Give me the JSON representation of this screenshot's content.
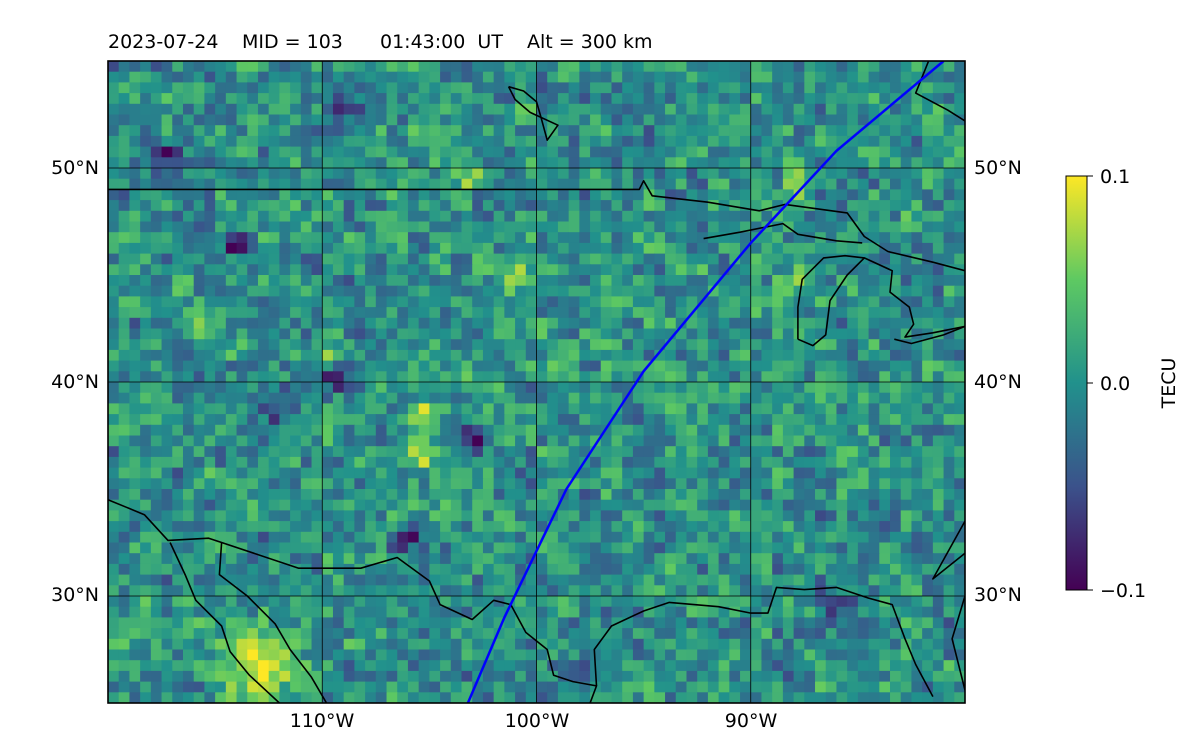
{
  "title": {
    "date": "2023-07-24",
    "mid": "MID = 103",
    "time": "01:43:00  UT",
    "alt": "Alt = 300 km"
  },
  "map": {
    "lon_range": [
      -120,
      -80
    ],
    "lat_range": [
      25,
      55
    ],
    "xticks": [
      {
        "lon": -110,
        "label": "110°W"
      },
      {
        "lon": -100,
        "label": "100°W"
      },
      {
        "lon": -90,
        "label": "90°W"
      }
    ],
    "yticks": [
      {
        "lat": 30,
        "label": "30°N"
      },
      {
        "lat": 40,
        "label": "40°N"
      },
      {
        "lat": 50,
        "label": "50°N"
      }
    ],
    "grid": true,
    "grid_color": "#000000",
    "coastline_color": "#000000",
    "track_color": "#0000ff"
  },
  "colorbar": {
    "label": "TECU",
    "min": -0.1,
    "max": 0.1,
    "ticks": [
      {
        "value": 0.1,
        "label": "0.1"
      },
      {
        "value": 0.0,
        "label": "0.0"
      },
      {
        "value": -0.1,
        "label": "−0.1"
      }
    ],
    "colormap": [
      "#440154",
      "#3b528b",
      "#21918c",
      "#5ec962",
      "#fde725"
    ]
  },
  "chart_data": {
    "type": "heatmap",
    "variable": "TECU",
    "value_range": [
      -0.1,
      0.1
    ],
    "background_value": 0.0,
    "anomalies": [
      {
        "lon": -113.0,
        "lat": 26.8,
        "value": 0.12
      },
      {
        "lon": -103.2,
        "lat": 49.5,
        "value": 0.07
      },
      {
        "lon": -88.0,
        "lat": 49.4,
        "value": 0.06
      },
      {
        "lon": -115.7,
        "lat": 43.0,
        "value": 0.08
      },
      {
        "lon": -109.8,
        "lat": 41.2,
        "value": 0.08
      },
      {
        "lon": -105.3,
        "lat": 38.4,
        "value": 0.08
      },
      {
        "lon": -105.5,
        "lat": 36.6,
        "value": 0.08
      },
      {
        "lon": -104.0,
        "lat": 34.0,
        "value": 0.07
      },
      {
        "lon": -101.0,
        "lat": 45.2,
        "value": 0.07
      },
      {
        "lon": -117.3,
        "lat": 50.8,
        "value": -0.07
      },
      {
        "lon": -87.0,
        "lat": 52.5,
        "value": -0.06
      },
      {
        "lon": -109.0,
        "lat": 53.0,
        "value": -0.05
      },
      {
        "lon": -114.0,
        "lat": 46.5,
        "value": -0.08
      },
      {
        "lon": -109.4,
        "lat": 40.0,
        "value": -0.07
      },
      {
        "lon": -102.7,
        "lat": 37.3,
        "value": -0.07
      },
      {
        "lon": -106.2,
        "lat": 32.7,
        "value": -0.07
      },
      {
        "lon": -86.0,
        "lat": 29.7,
        "value": -0.05
      },
      {
        "lon": -112.0,
        "lat": 38.5,
        "value": -0.04
      },
      {
        "lon": -88.0,
        "lat": 45.0,
        "value": 0.04
      },
      {
        "lon": -97.0,
        "lat": 42.0,
        "value": 0.04
      }
    ],
    "satellite_track": [
      {
        "lon": -103.2,
        "lat": 25.0
      },
      {
        "lon": -101.5,
        "lat": 29.0
      },
      {
        "lon": -98.6,
        "lat": 35.0
      },
      {
        "lon": -95.0,
        "lat": 40.5
      },
      {
        "lon": -90.0,
        "lat": 46.5
      },
      {
        "lon": -86.0,
        "lat": 50.8
      },
      {
        "lon": -81.0,
        "lat": 55.0
      }
    ]
  }
}
